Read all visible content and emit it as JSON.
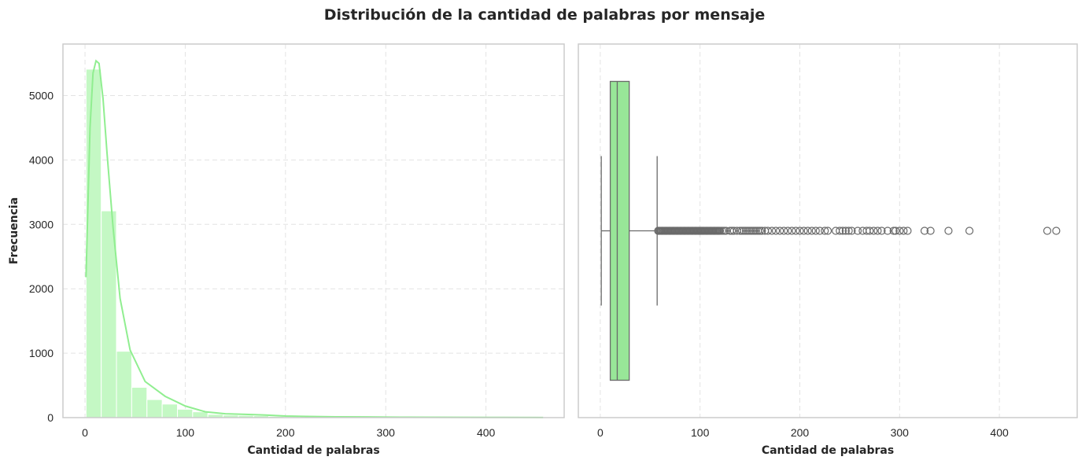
{
  "title": "Distribución de la cantidad de palabras por mensaje",
  "colors": {
    "bar_fill": "#c4f8c4",
    "kde_line": "#90ee90",
    "box_fill": "#98e698",
    "whisker": "#6a6a6a",
    "grid": "#e3e3e3",
    "spine": "#cccccc"
  },
  "chart_data": [
    {
      "type": "histogram",
      "title": "",
      "xlabel": "Cantidad de palabras",
      "ylabel": "Frecuencia",
      "xlim": [
        -22,
        478
      ],
      "ylim": [
        0,
        5800
      ],
      "xticks": [
        0,
        100,
        200,
        300,
        400
      ],
      "yticks": [
        0,
        1000,
        2000,
        3000,
        4000,
        5000
      ],
      "grid": true,
      "bin_edges": [
        1,
        16.2,
        31.4,
        46.6,
        61.8,
        77,
        92.2,
        107.4,
        122.6,
        137.8,
        153,
        168.2,
        183.4,
        198.6,
        213.8,
        229,
        244.2,
        259.4,
        274.6,
        289.8,
        305,
        320.2,
        335.4,
        350.6,
        365.8,
        381,
        396.2,
        411.4,
        426.6,
        441.8,
        457
      ],
      "counts": [
        5410,
        3210,
        1030,
        470,
        280,
        210,
        130,
        90,
        50,
        40,
        35,
        30,
        20,
        15,
        12,
        10,
        9,
        8,
        6,
        5,
        4,
        3,
        2,
        2,
        1,
        1,
        0,
        0,
        1,
        1
      ],
      "kde": {
        "x": [
          1,
          5,
          8,
          11,
          14,
          18,
          22,
          28,
          35,
          45,
          60,
          80,
          100,
          120,
          140,
          160,
          180,
          200,
          220,
          250,
          280,
          320,
          360,
          400,
          457
        ],
        "y": [
          2180,
          4500,
          5350,
          5540,
          5500,
          4950,
          4100,
          2950,
          1850,
          1050,
          560,
          330,
          180,
          90,
          60,
          50,
          40,
          25,
          18,
          12,
          10,
          6,
          4,
          3,
          2
        ]
      }
    },
    {
      "type": "box",
      "title": "",
      "xlabel": "Cantidad de palabras",
      "ylabel": "",
      "xlim": [
        -22,
        478
      ],
      "xticks": [
        0,
        100,
        200,
        300,
        400
      ],
      "grid": true,
      "whisker_low": 1,
      "q1": 10,
      "median": 17,
      "q3": 29,
      "whisker_high": 57,
      "outliers": [
        58,
        59,
        60,
        61,
        62,
        63,
        64,
        65,
        66,
        67,
        68,
        69,
        70,
        71,
        72,
        73,
        74,
        75,
        76,
        77,
        78,
        79,
        80,
        81,
        82,
        83,
        84,
        85,
        86,
        87,
        88,
        89,
        90,
        91,
        92,
        93,
        94,
        95,
        96,
        97,
        98,
        99,
        100,
        101,
        102,
        103,
        104,
        105,
        106,
        107,
        108,
        109,
        110,
        111,
        112,
        113,
        114,
        115,
        116,
        117,
        118,
        119,
        120,
        122,
        124,
        126,
        130,
        132,
        134,
        137,
        140,
        142,
        144,
        146,
        148,
        150,
        152,
        154,
        156,
        158,
        160,
        162,
        165,
        168,
        172,
        176,
        180,
        184,
        188,
        192,
        196,
        200,
        204,
        208,
        212,
        216,
        220,
        225,
        228,
        236,
        240,
        243,
        246,
        249,
        252,
        258,
        263,
        267,
        270,
        274,
        278,
        282,
        288,
        294,
        296,
        300,
        304,
        308,
        325,
        331,
        349,
        370,
        448,
        457
      ]
    }
  ]
}
